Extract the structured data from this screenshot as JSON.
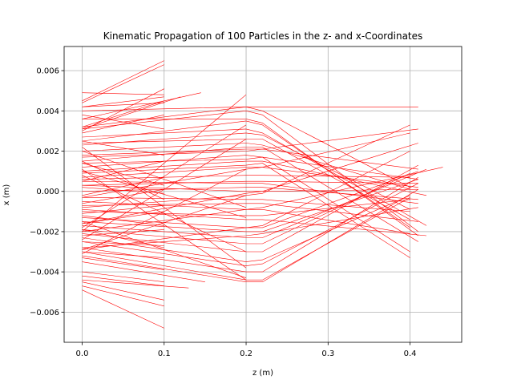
{
  "chart_data": {
    "type": "line",
    "title": "Kinematic Propagation of 100 Particles in the z- and x-Coordinates",
    "xlabel": "z (m)",
    "ylabel": "x (m)",
    "xlim": [
      -0.022,
      0.463
    ],
    "ylim": [
      -0.0075,
      0.0072
    ],
    "xticks": [
      0.0,
      0.1,
      0.2,
      0.3,
      0.4
    ],
    "xtick_labels": [
      "0.0",
      "0.1",
      "0.2",
      "0.3",
      "0.4"
    ],
    "yticks": [
      -0.006,
      -0.004,
      -0.002,
      0.0,
      0.002,
      0.004,
      0.006
    ],
    "ytick_labels": [
      "−0.006",
      "−0.004",
      "−0.002",
      "0.000",
      "0.002",
      "0.004",
      "0.006"
    ],
    "grid": true,
    "line_color": "#ff0000",
    "series": [
      {
        "x": [
          0,
          0.1
        ],
        "y": [
          0.0045,
          0.0065
        ]
      },
      {
        "x": [
          0,
          0.1
        ],
        "y": [
          0.0044,
          0.0063
        ]
      },
      {
        "x": [
          0,
          0.1
        ],
        "y": [
          0.0042,
          0.0047
        ]
      },
      {
        "x": [
          0,
          0.145
        ],
        "y": [
          0.0036,
          0.0049
        ]
      },
      {
        "x": [
          0,
          0.12
        ],
        "y": [
          0.0031,
          0.0047
        ]
      },
      {
        "x": [
          0,
          0.1
        ],
        "y": [
          0.003,
          0.0051
        ]
      },
      {
        "x": [
          0,
          0.1
        ],
        "y": [
          0.0049,
          0.0048
        ]
      },
      {
        "x": [
          0,
          0.2,
          0.22,
          0.41
        ],
        "y": [
          0.004,
          0.0042,
          0.0042,
          0.0042
        ]
      },
      {
        "x": [
          0,
          0.2,
          0.22,
          0.4
        ],
        "y": [
          0.0032,
          0.0042,
          0.004,
          0.0002
        ]
      },
      {
        "x": [
          0,
          0.2,
          0.22,
          0.41
        ],
        "y": [
          0.0031,
          0.004,
          0.0038,
          -0.002
        ]
      },
      {
        "x": [
          0,
          0.2,
          0.22,
          0.4
        ],
        "y": [
          0.0025,
          0.0035,
          0.0033,
          -0.0018
        ]
      },
      {
        "x": [
          0,
          0.2,
          0.22,
          0.41
        ],
        "y": [
          0.0036,
          0.0036,
          0.0034,
          -0.0022
        ]
      },
      {
        "x": [
          0,
          0.2,
          0.22,
          0.42
        ],
        "y": [
          0.0027,
          0.0031,
          0.0029,
          -0.0017
        ]
      },
      {
        "x": [
          0,
          0.2,
          0.22,
          0.4
        ],
        "y": [
          0.0023,
          0.0029,
          0.0028,
          -0.0009
        ]
      },
      {
        "x": [
          0,
          0.2,
          0.22,
          0.4
        ],
        "y": [
          0.002,
          0.0024,
          0.0023,
          0.0001
        ]
      },
      {
        "x": [
          0,
          0.2,
          0.22,
          0.41
        ],
        "y": [
          0.0017,
          0.002,
          0.0021,
          0.0011
        ]
      },
      {
        "x": [
          0,
          0.2,
          0.22,
          0.41
        ],
        "y": [
          0.0012,
          0.0018,
          0.0017,
          0.0006
        ]
      },
      {
        "x": [
          0,
          0.2,
          0.22,
          0.42
        ],
        "y": [
          0.001,
          0.0015,
          0.0015,
          -0.0002
        ]
      },
      {
        "x": [
          0,
          0.2,
          0.22,
          0.41
        ],
        "y": [
          0.0007,
          0.0012,
          0.0012,
          0.0002
        ]
      },
      {
        "x": [
          0,
          0.2,
          0.22,
          0.4
        ],
        "y": [
          0.0006,
          0.0008,
          0.0008,
          0.0007
        ]
      },
      {
        "x": [
          0,
          0.2,
          0.22,
          0.41
        ],
        "y": [
          0.0003,
          0.0005,
          0.0005,
          0.0004
        ]
      },
      {
        "x": [
          0,
          0.2,
          0.22,
          0.41
        ],
        "y": [
          0.0,
          0.0002,
          0.0002,
          -0.0004
        ]
      },
      {
        "x": [
          0,
          0.2,
          0.22,
          0.4
        ],
        "y": [
          -0.0003,
          -0.0004,
          -0.0004,
          -0.001
        ]
      },
      {
        "x": [
          0,
          0.2,
          0.22,
          0.41
        ],
        "y": [
          -0.0007,
          -0.0006,
          -0.0006,
          -0.0015
        ]
      },
      {
        "x": [
          0,
          0.2,
          0.22,
          0.4
        ],
        "y": [
          -0.001,
          -0.0012,
          -0.0012,
          -0.0004
        ]
      },
      {
        "x": [
          0,
          0.2,
          0.22,
          0.41
        ],
        "y": [
          -0.0013,
          -0.0018,
          -0.0018,
          0.001
        ]
      },
      {
        "x": [
          0,
          0.2,
          0.22,
          0.41
        ],
        "y": [
          -0.0015,
          -0.002,
          -0.002,
          0.0006
        ]
      },
      {
        "x": [
          0,
          0.2,
          0.22,
          0.42
        ],
        "y": [
          -0.0017,
          -0.0023,
          -0.0023,
          0.0011
        ]
      },
      {
        "x": [
          0,
          0.2,
          0.22,
          0.4
        ],
        "y": [
          -0.0019,
          -0.0026,
          -0.0026,
          0.0009
        ]
      },
      {
        "x": [
          0,
          0.2,
          0.22,
          0.41
        ],
        "y": [
          -0.0021,
          -0.003,
          -0.003,
          0.0013
        ]
      },
      {
        "x": [
          0,
          0.2,
          0.22,
          0.4
        ],
        "y": [
          -0.0023,
          -0.0035,
          -0.0034,
          -0.0002
        ]
      },
      {
        "x": [
          0,
          0.2,
          0.22,
          0.41
        ],
        "y": [
          -0.0025,
          -0.0037,
          -0.0036,
          0.0004
        ]
      },
      {
        "x": [
          0,
          0.2,
          0.22,
          0.41
        ],
        "y": [
          -0.0028,
          -0.004,
          -0.004,
          0.0007
        ]
      },
      {
        "x": [
          0,
          0.2,
          0.22,
          0.4
        ],
        "y": [
          -0.003,
          -0.0044,
          -0.0044,
          -0.0003
        ]
      },
      {
        "x": [
          0,
          0.2,
          0.22,
          0.41
        ],
        "y": [
          -0.0032,
          -0.0045,
          -0.0045,
          0.0001
        ]
      },
      {
        "x": [
          0,
          0.2,
          0.22,
          0.41
        ],
        "y": [
          0.0018,
          0.0021,
          0.0021,
          0.0031
        ]
      },
      {
        "x": [
          0,
          0.2,
          0.22,
          0.4
        ],
        "y": [
          -0.0003,
          0.0011,
          0.0012,
          0.0029
        ]
      },
      {
        "x": [
          0,
          0.2,
          0.22,
          0.4
        ],
        "y": [
          -0.0008,
          -0.0002,
          -0.0001,
          0.0033
        ]
      },
      {
        "x": [
          0,
          0.2,
          0.22,
          0.41
        ],
        "y": [
          -0.0016,
          -0.0001,
          0.0,
          0.0024
        ]
      },
      {
        "x": [
          0,
          0.2,
          0.22,
          0.44
        ],
        "y": [
          -0.002,
          -0.0009,
          -0.0008,
          0.0012
        ]
      },
      {
        "x": [
          0,
          0.2,
          0.22,
          0.4
        ],
        "y": [
          -0.0029,
          -0.0018,
          -0.0017,
          0.002
        ]
      },
      {
        "x": [
          0,
          0.2,
          0.22,
          0.41
        ],
        "y": [
          -0.0028,
          -0.0022,
          -0.0021,
          -0.0008
        ]
      },
      {
        "x": [
          0,
          0.2,
          0.22,
          0.4
        ],
        "y": [
          0.0014,
          0.0016,
          0.0017,
          -0.003
        ]
      },
      {
        "x": [
          0,
          0.2,
          0.22,
          0.41
        ],
        "y": [
          0.0015,
          0.0022,
          0.0022,
          -0.0025
        ]
      },
      {
        "x": [
          0,
          0.2,
          0.22,
          0.4
        ],
        "y": [
          0.0009,
          0.0013,
          0.0014,
          -0.0033
        ]
      },
      {
        "x": [
          0,
          0.2,
          0.22,
          0.4
        ],
        "y": [
          -0.0005,
          -0.0009,
          -0.0009,
          -0.0021
        ]
      },
      {
        "x": [
          0,
          0.2,
          0.22,
          0.42
        ],
        "y": [
          -0.0009,
          -0.0014,
          -0.0014,
          -0.0022
        ]
      },
      {
        "x": [
          0,
          0.2,
          0.22,
          0.41
        ],
        "y": [
          0.0003,
          0.0,
          0.0,
          0.0001
        ]
      },
      {
        "x": [
          0,
          0.2,
          0.22,
          0.41
        ],
        "y": [
          0.0005,
          0.0004,
          0.0004,
          -0.0006
        ]
      },
      {
        "x": [
          0,
          0.2,
          0.22,
          0.4
        ],
        "y": [
          0.0024,
          0.0026,
          0.0026,
          -0.0014
        ]
      },
      {
        "x": [
          0,
          0.2
        ],
        "y": [
          -0.0018,
          0.0033
        ]
      },
      {
        "x": [
          0,
          0.2
        ],
        "y": [
          -0.002,
          0.0048
        ]
      },
      {
        "x": [
          0,
          0.2
        ],
        "y": [
          -0.0024,
          0.0026
        ]
      },
      {
        "x": [
          0,
          0.2
        ],
        "y": [
          -0.0031,
          0.0011
        ]
      },
      {
        "x": [
          0,
          0.2
        ],
        "y": [
          -0.0029,
          -0.0002
        ]
      },
      {
        "x": [
          0,
          0.2
        ],
        "y": [
          0.001,
          -0.0013
        ]
      },
      {
        "x": [
          0,
          0.2
        ],
        "y": [
          0.002,
          -0.0008
        ]
      },
      {
        "x": [
          0,
          0.2
        ],
        "y": [
          0.0022,
          -0.0038
        ]
      },
      {
        "x": [
          0,
          0.2
        ],
        "y": [
          0.0011,
          -0.0044
        ]
      },
      {
        "x": [
          0,
          0.2
        ],
        "y": [
          0.0008,
          -0.003
        ]
      },
      {
        "x": [
          0,
          0.2
        ],
        "y": [
          -0.0015,
          -0.0043
        ]
      },
      {
        "x": [
          0,
          0.15
        ],
        "y": [
          -0.0035,
          -0.0045
        ]
      },
      {
        "x": [
          0,
          0.1
        ],
        "y": [
          0.0032,
          0.0045
        ]
      },
      {
        "x": [
          0,
          0.1
        ],
        "y": [
          0.0029,
          0.0038
        ]
      },
      {
        "x": [
          0,
          0.1
        ],
        "y": [
          0.0025,
          0.0018
        ]
      },
      {
        "x": [
          0,
          0.1
        ],
        "y": [
          0.0005,
          0.0015
        ]
      },
      {
        "x": [
          0,
          0.1
        ],
        "y": [
          -0.0002,
          0.0007
        ]
      },
      {
        "x": [
          0,
          0.1
        ],
        "y": [
          0.0014,
          0.0003
        ]
      },
      {
        "x": [
          0,
          0.1
        ],
        "y": [
          0.0015,
          -0.0004
        ]
      },
      {
        "x": [
          0,
          0.1
        ],
        "y": [
          -0.0006,
          0.0001
        ]
      },
      {
        "x": [
          0,
          0.1
        ],
        "y": [
          -0.0011,
          -0.0007
        ]
      },
      {
        "x": [
          0,
          0.1
        ],
        "y": [
          -0.0016,
          -0.001
        ]
      },
      {
        "x": [
          0,
          0.1
        ],
        "y": [
          -0.0012,
          -0.0017
        ]
      },
      {
        "x": [
          0,
          0.1
        ],
        "y": [
          -0.0022,
          -0.0019
        ]
      },
      {
        "x": [
          0,
          0.1
        ],
        "y": [
          -0.0025,
          -0.0027
        ]
      },
      {
        "x": [
          0,
          0.1
        ],
        "y": [
          -0.003,
          -0.0033
        ]
      },
      {
        "x": [
          0,
          0.1
        ],
        "y": [
          -0.0033,
          -0.0039
        ]
      },
      {
        "x": [
          0,
          0.1
        ],
        "y": [
          -0.004,
          -0.0045
        ]
      },
      {
        "x": [
          0,
          0.1
        ],
        "y": [
          -0.0042,
          -0.0047
        ]
      },
      {
        "x": [
          0,
          0.13
        ],
        "y": [
          -0.0044,
          -0.0048
        ]
      },
      {
        "x": [
          0,
          0.1
        ],
        "y": [
          -0.0047,
          -0.0057
        ]
      },
      {
        "x": [
          0,
          0.1
        ],
        "y": [
          -0.0049,
          -0.0068
        ]
      },
      {
        "x": [
          0,
          0.1
        ],
        "y": [
          -0.0045,
          -0.0054
        ]
      },
      {
        "x": [
          0,
          0.1
        ],
        "y": [
          0.0038,
          0.0031
        ]
      },
      {
        "x": [
          0,
          0.1
        ],
        "y": [
          0.0042,
          0.0044
        ]
      },
      {
        "x": [
          0,
          0.1
        ],
        "y": [
          0.0002,
          -0.0001
        ]
      },
      {
        "x": [
          0,
          0.1
        ],
        "y": [
          -0.0019,
          -0.0028
        ]
      }
    ]
  }
}
